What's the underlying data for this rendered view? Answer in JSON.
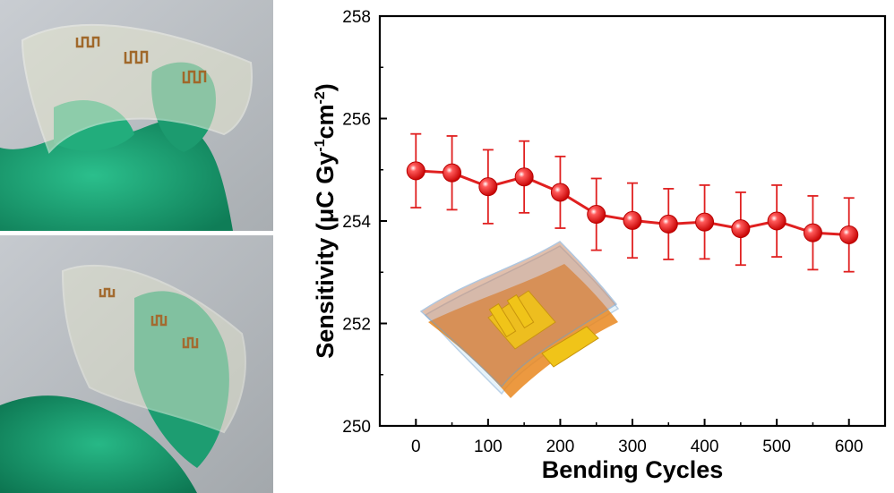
{
  "chart_data": {
    "type": "line",
    "xlabel": "Bending Cycles",
    "ylabel_parts": [
      "Sensitivity (μC Gy",
      "-1",
      "cm",
      "-2",
      ")"
    ],
    "x": [
      0,
      50,
      100,
      150,
      200,
      250,
      300,
      350,
      400,
      450,
      500,
      550,
      600
    ],
    "xlim": [
      -50,
      650
    ],
    "ylim": [
      250,
      258
    ],
    "xticks": [
      0,
      100,
      200,
      300,
      400,
      500,
      600
    ],
    "yticks": [
      250,
      252,
      254,
      256,
      258
    ],
    "grid": false,
    "series": [
      {
        "values": [
          254.98,
          254.94,
          254.67,
          254.86,
          254.56,
          254.13,
          254.01,
          253.94,
          253.98,
          253.85,
          254.0,
          253.77,
          253.73
        ],
        "errors": [
          0.72,
          0.72,
          0.72,
          0.7,
          0.7,
          0.7,
          0.73,
          0.69,
          0.72,
          0.71,
          0.7,
          0.72,
          0.72
        ],
        "color": "#e02020"
      }
    ]
  },
  "colors": {
    "glove": "#1fa67a",
    "film": "#d9dcc2",
    "inset_orange": "#e9871f",
    "inset_blue": "#a9c8e8",
    "inset_gold": "#f0c419"
  }
}
